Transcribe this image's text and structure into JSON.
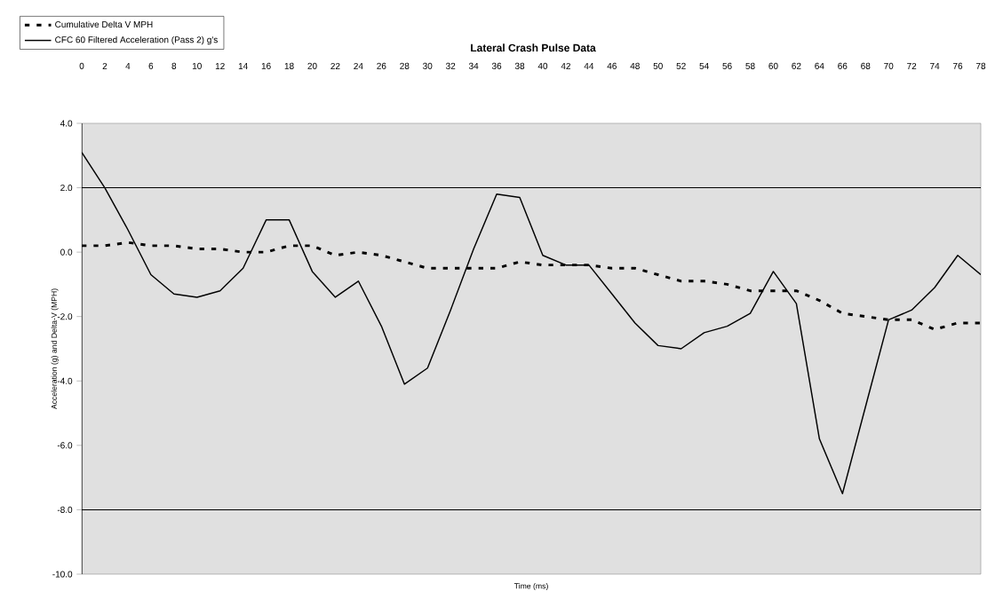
{
  "chart_data": {
    "type": "line",
    "title": "Lateral Crash Pulse Data",
    "xlabel": "Time (ms)",
    "ylabel": "Acceleration (g) and Delta-V (MPH)",
    "categories": [
      "0",
      "2",
      "4",
      "6",
      "8",
      "10",
      "12",
      "14",
      "16",
      "18",
      "20",
      "22",
      "24",
      "26",
      "28",
      "30",
      "32",
      "34",
      "36",
      "38",
      "40",
      "42",
      "44",
      "46",
      "48",
      "50",
      "52",
      "54",
      "56",
      "58",
      "60",
      "62",
      "64",
      "66",
      "68",
      "70",
      "72",
      "74",
      "76",
      "78"
    ],
    "series": [
      {
        "name": "Cumulative Delta V MPH",
        "color": "#000000",
        "line_style": "dashed",
        "values": [
          0.2,
          0.2,
          0.3,
          0.2,
          0.2,
          0.1,
          0.1,
          0.0,
          0.0,
          0.2,
          0.2,
          -0.1,
          0.0,
          -0.1,
          -0.3,
          -0.5,
          -0.5,
          -0.5,
          -0.5,
          -0.3,
          -0.4,
          -0.4,
          -0.4,
          -0.5,
          -0.5,
          -0.7,
          -0.9,
          -0.9,
          -1.0,
          -1.2,
          -1.2,
          -1.2,
          -1.5,
          -1.9,
          -2.0,
          -2.1,
          -2.1,
          -2.4,
          -2.2,
          -2.2
        ]
      },
      {
        "name": "CFC 60 Filtered Acceleration (Pass 2) g's",
        "color": "#000000",
        "line_style": "solid",
        "values": [
          3.1,
          2.0,
          0.7,
          -0.7,
          -1.3,
          -1.4,
          -1.2,
          -0.5,
          1.0,
          1.0,
          -0.6,
          -1.4,
          -0.9,
          -2.3,
          -4.1,
          -3.6,
          -1.8,
          0.1,
          1.8,
          1.7,
          -0.1,
          -0.4,
          -0.4,
          -1.3,
          -2.2,
          -2.9,
          -3.0,
          -2.5,
          -2.3,
          -1.9,
          -0.6,
          -1.6,
          -5.8,
          -7.5,
          -4.8,
          -2.1,
          -1.8,
          -1.1,
          -0.1,
          -0.7
        ]
      }
    ],
    "ylim": [
      -10,
      4
    ],
    "yticks": [
      {
        "value": 4,
        "label": "4.0"
      },
      {
        "value": 2,
        "label": "2.0"
      },
      {
        "value": 0,
        "label": "0.0"
      },
      {
        "value": -2,
        "label": "-2.0"
      },
      {
        "value": -4,
        "label": "-4.0"
      },
      {
        "value": -6,
        "label": "-6.0"
      },
      {
        "value": -8,
        "label": "-8.0"
      },
      {
        "value": -10,
        "label": "-10.0"
      }
    ],
    "ref_lines": [
      {
        "axis": "y",
        "value": 2,
        "color": "#000000"
      },
      {
        "axis": "y",
        "value": -8,
        "color": "#000000"
      }
    ],
    "legend": "top left",
    "grid": false
  }
}
